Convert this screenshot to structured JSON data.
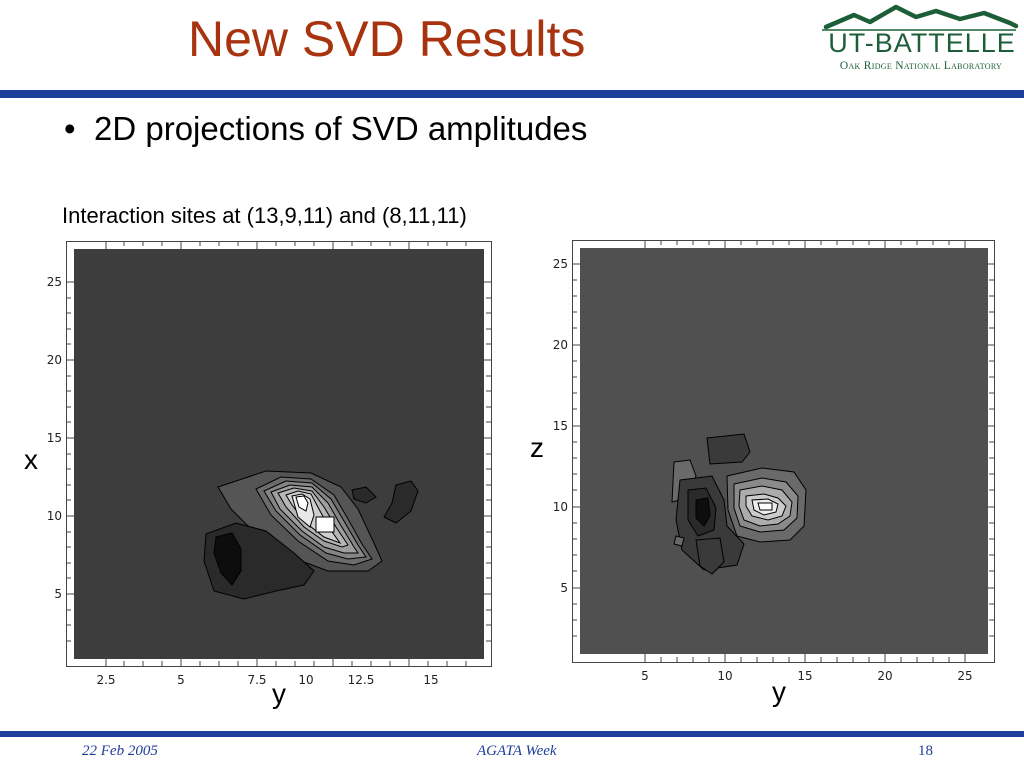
{
  "slide": {
    "title": "New SVD Results",
    "bullet": "2D projections of SVD amplitudes",
    "subtitle": "Interaction sites at (13,9,11) and (8,11,11)"
  },
  "logo": {
    "main": "UT-BATTELLE",
    "sub": "Oak Ridge National Laboratory"
  },
  "plots": [
    {
      "x_ticks": [
        "2.5",
        "5",
        "7.5",
        "10",
        "12.5",
        "15"
      ],
      "y_ticks": [
        "25",
        "20",
        "15",
        "10",
        "5"
      ],
      "xlabel": "y",
      "ylabel": "x"
    },
    {
      "x_ticks": [
        "5",
        "10",
        "15",
        "20",
        "25"
      ],
      "y_ticks": [
        "25",
        "20",
        "15",
        "10",
        "5"
      ],
      "xlabel": "y",
      "ylabel": "z"
    }
  ],
  "footer": {
    "date": "22 Feb 2005",
    "event": "AGATA Week",
    "page": "18"
  },
  "colors": {
    "title": "#a8330f",
    "rule": "#1f3d9a",
    "logo": "#1b5e37",
    "plot_background": "#3d3d3d"
  }
}
